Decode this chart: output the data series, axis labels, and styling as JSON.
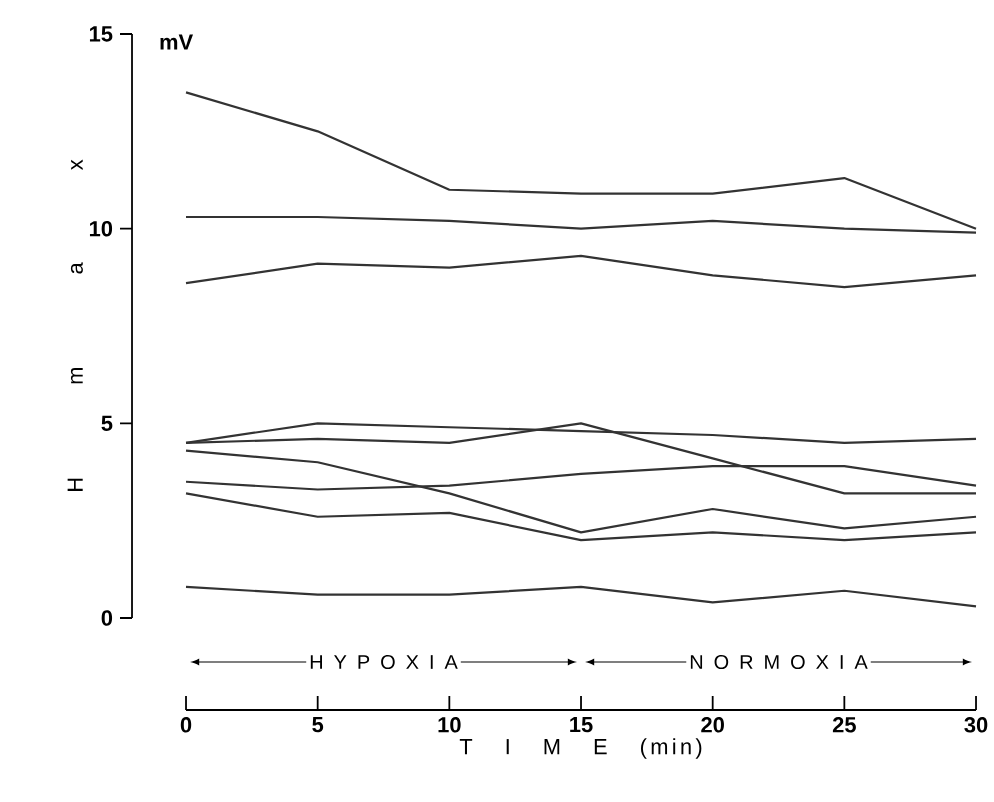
{
  "chart_data": {
    "type": "line",
    "xlabel": "T I M E (min)",
    "ylabel": "Hmax",
    "x": [
      0,
      5,
      10,
      15,
      20,
      25,
      30
    ],
    "xlim": [
      0,
      30
    ],
    "xticks": [
      0,
      5,
      10,
      15,
      20,
      25,
      30
    ],
    "ylim": [
      0,
      15
    ],
    "yticks": [
      0,
      5,
      10,
      15
    ],
    "marker": "none",
    "line_style": "solid",
    "series": [
      {
        "color": "#333333",
        "values": [
          13.5,
          12.5,
          11.0,
          10.9,
          10.9,
          11.3,
          10.0
        ]
      },
      {
        "color": "#333333",
        "values": [
          10.3,
          10.3,
          10.2,
          10.0,
          10.2,
          10.0,
          9.9
        ]
      },
      {
        "color": "#333333",
        "values": [
          8.6,
          9.1,
          9.0,
          9.3,
          8.8,
          8.5,
          8.8
        ]
      },
      {
        "color": "#333333",
        "values": [
          4.5,
          5.0,
          4.9,
          4.8,
          4.7,
          4.5,
          4.6
        ]
      },
      {
        "color": "#333333",
        "values": [
          4.5,
          4.6,
          4.5,
          5.0,
          4.1,
          3.2,
          3.2
        ]
      },
      {
        "color": "#333333",
        "values": [
          3.5,
          3.3,
          3.4,
          3.7,
          3.9,
          3.9,
          3.4
        ]
      },
      {
        "color": "#333333",
        "values": [
          4.3,
          4.0,
          3.2,
          2.2,
          2.8,
          2.3,
          2.6
        ]
      },
      {
        "color": "#333333",
        "values": [
          3.2,
          2.6,
          2.7,
          2.0,
          2.2,
          2.0,
          2.2
        ]
      },
      {
        "color": "#333333",
        "values": [
          0.8,
          0.6,
          0.6,
          0.8,
          0.4,
          0.7,
          0.3
        ]
      }
    ],
    "annotations": [
      "mV",
      "H Y P O X I A",
      "N O R M O X I A"
    ]
  }
}
